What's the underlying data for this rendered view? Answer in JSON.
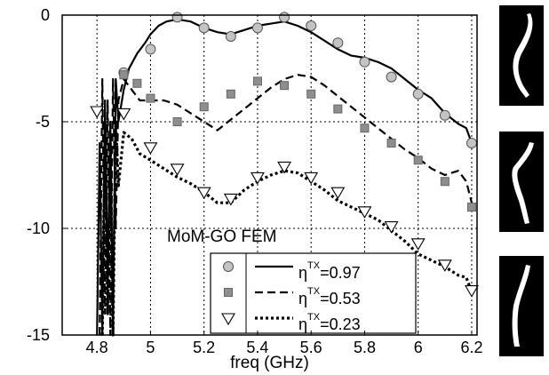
{
  "chart_data": {
    "type": "line",
    "title": "",
    "xlabel": "freq (GHz)",
    "ylabel": "",
    "xlim": [
      4.67,
      6.22
    ],
    "ylim": [
      -15,
      0
    ],
    "xticks": [
      4.8,
      5,
      5.2,
      5.4,
      5.6,
      5.8,
      6,
      6.2
    ],
    "yticks": [
      0,
      -5,
      -10,
      -15
    ],
    "grid": true,
    "annotation": "MoM-GO  FEM",
    "legend": {
      "placement": "bottom-right",
      "entries": [
        {
          "marker": "circle",
          "line": "solid",
          "base": "η",
          "sup": "TX",
          "value": "=0.97"
        },
        {
          "marker": "square",
          "line": "dashed",
          "base": "η",
          "sup": "TX",
          "value": "=0.53"
        },
        {
          "marker": "triangle-down",
          "line": "dotted",
          "base": "η",
          "sup": "TX",
          "value": "=0.23"
        }
      ]
    },
    "series": [
      {
        "line_style": "solid",
        "fem": {
          "x": [
            4.8,
            4.81,
            4.82,
            4.83,
            4.84,
            4.85,
            4.86,
            4.87,
            4.88,
            4.9,
            4.92,
            4.95,
            4.98,
            5.0,
            5.03,
            5.06,
            5.1,
            5.15,
            5.2,
            5.25,
            5.3,
            5.35,
            5.4,
            5.45,
            5.5,
            5.55,
            5.6,
            5.65,
            5.7,
            5.75,
            5.8,
            5.85,
            5.9,
            5.95,
            6.0,
            6.05,
            6.1,
            6.15,
            6.18,
            6.2
          ],
          "y": [
            -15,
            -6,
            -15,
            -4,
            -13,
            -5,
            -15,
            -3,
            -5,
            -3.5,
            -2.5,
            -1.8,
            -1.3,
            -0.9,
            -0.5,
            -0.3,
            -0.2,
            -0.3,
            -0.6,
            -0.8,
            -0.9,
            -0.7,
            -0.5,
            -0.4,
            -0.3,
            -0.5,
            -0.8,
            -1.2,
            -1.6,
            -1.9,
            -2.0,
            -2.2,
            -2.5,
            -3.0,
            -3.5,
            -3.9,
            -4.6,
            -5.1,
            -5.3,
            -6.0
          ]
        },
        "mom_go": {
          "x": [
            4.9,
            5.0,
            5.1,
            5.2,
            5.3,
            5.4,
            5.5,
            5.6,
            5.7,
            5.8,
            5.9,
            6.0,
            6.1,
            6.2
          ],
          "y": [
            -2.7,
            -1.6,
            -0.1,
            -0.6,
            -1.0,
            -0.6,
            -0.1,
            -0.5,
            -1.3,
            -2.2,
            -2.9,
            -3.7,
            -4.7,
            -6.0
          ]
        }
      },
      {
        "line_style": "dashed",
        "fem": {
          "x": [
            4.81,
            4.82,
            4.83,
            4.84,
            4.85,
            4.86,
            4.87,
            4.88,
            4.9,
            4.93,
            4.96,
            5.0,
            5.05,
            5.1,
            5.15,
            5.2,
            5.25,
            5.3,
            5.35,
            5.4,
            5.45,
            5.5,
            5.55,
            5.6,
            5.65,
            5.7,
            5.75,
            5.8,
            5.85,
            5.9,
            5.95,
            6.0,
            6.05,
            6.1,
            6.15,
            6.18,
            6.2
          ],
          "y": [
            -15,
            -3,
            -14,
            -4,
            -15,
            -3,
            -10,
            -4,
            -3.0,
            -3.5,
            -4.0,
            -4.0,
            -4.0,
            -4.2,
            -4.6,
            -5.0,
            -5.4,
            -4.9,
            -4.4,
            -3.9,
            -3.4,
            -3.0,
            -2.8,
            -2.9,
            -3.3,
            -3.8,
            -4.3,
            -4.8,
            -5.3,
            -5.8,
            -6.3,
            -6.7,
            -7.2,
            -7.5,
            -7.3,
            -7.8,
            -8.8
          ]
        },
        "mom_go": {
          "x": [
            4.9,
            4.95,
            5.0,
            5.1,
            5.2,
            5.3,
            5.4,
            5.5,
            5.6,
            5.7,
            5.8,
            5.9,
            6.0,
            6.1,
            6.2
          ],
          "y": [
            -2.8,
            -3.2,
            -3.9,
            -5.0,
            -4.3,
            -3.7,
            -3.1,
            -3.3,
            -3.7,
            -4.4,
            -5.3,
            -6.0,
            -6.8,
            -7.8,
            -9.0
          ]
        }
      },
      {
        "line_style": "dotted",
        "fem": {
          "x": [
            4.82,
            4.83,
            4.84,
            4.85,
            4.86,
            4.87,
            4.88,
            4.9,
            4.93,
            4.96,
            5.0,
            5.05,
            5.1,
            5.15,
            5.2,
            5.25,
            5.3,
            5.35,
            5.4,
            5.45,
            5.5,
            5.55,
            5.6,
            5.65,
            5.7,
            5.75,
            5.8,
            5.85,
            5.9,
            5.95,
            6.0,
            6.05,
            6.1,
            6.15,
            6.18,
            6.2
          ],
          "y": [
            -15,
            -5,
            -14,
            -6,
            -15,
            -5,
            -8,
            -5.5,
            -5.8,
            -6.5,
            -6.8,
            -7.2,
            -7.6,
            -7.9,
            -8.3,
            -8.8,
            -8.8,
            -8.2,
            -7.8,
            -7.5,
            -7.3,
            -7.4,
            -7.8,
            -8.2,
            -8.7,
            -9.0,
            -9.3,
            -9.6,
            -10.1,
            -10.6,
            -11.2,
            -11.5,
            -11.8,
            -12.2,
            -12.3,
            -13.0
          ]
        },
        "mom_go": {
          "x": [
            4.8,
            4.9,
            5.0,
            5.1,
            5.2,
            5.3,
            5.4,
            5.5,
            5.6,
            5.7,
            5.8,
            5.9,
            6.0,
            6.1,
            6.2
          ],
          "y": [
            -4.5,
            -4.6,
            -6.2,
            -7.2,
            -8.3,
            -8.6,
            -7.6,
            -7.1,
            -7.6,
            -8.3,
            -9.2,
            -9.9,
            -10.7,
            -11.7,
            -12.9
          ]
        }
      }
    ]
  },
  "insets": {
    "count": 3,
    "background": "#000000",
    "foreground": "#ffffff"
  },
  "colors": {
    "fem_line": "#000000",
    "circle_fill": "#c4c4c4",
    "square_fill": "#8e8e8e",
    "triangle_fill": "#ffffff",
    "grid": "#000000"
  }
}
